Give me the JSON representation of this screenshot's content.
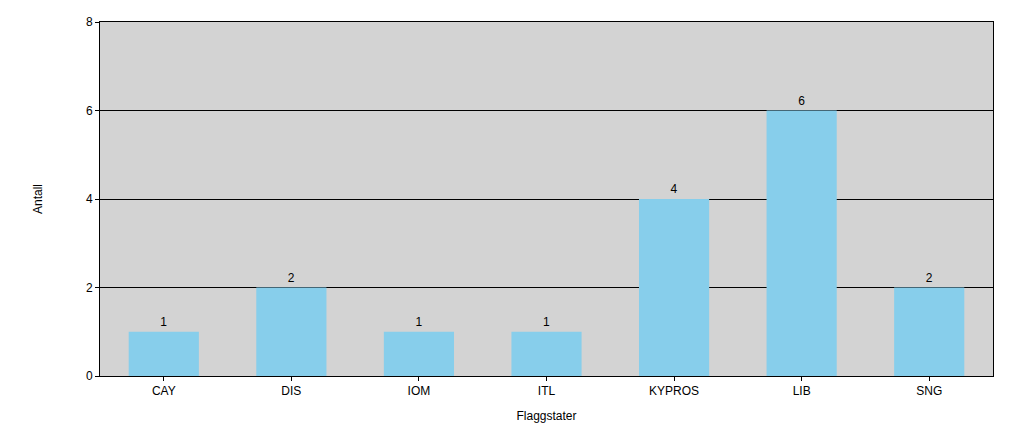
{
  "chart_data": {
    "type": "bar",
    "x_label": "Flaggstater",
    "y_label": "Antall",
    "categories": [
      "CAY",
      "DIS",
      "IOM",
      "ITL",
      "KYPROS",
      "LIB",
      "SNG"
    ],
    "values": [
      1,
      2,
      1,
      1,
      4,
      6,
      2
    ],
    "color": "#87ceeb",
    "ylim": [
      0,
      8
    ],
    "yticks": [
      0,
      2,
      4,
      6,
      8
    ],
    "grid": true,
    "data_labels": true
  }
}
